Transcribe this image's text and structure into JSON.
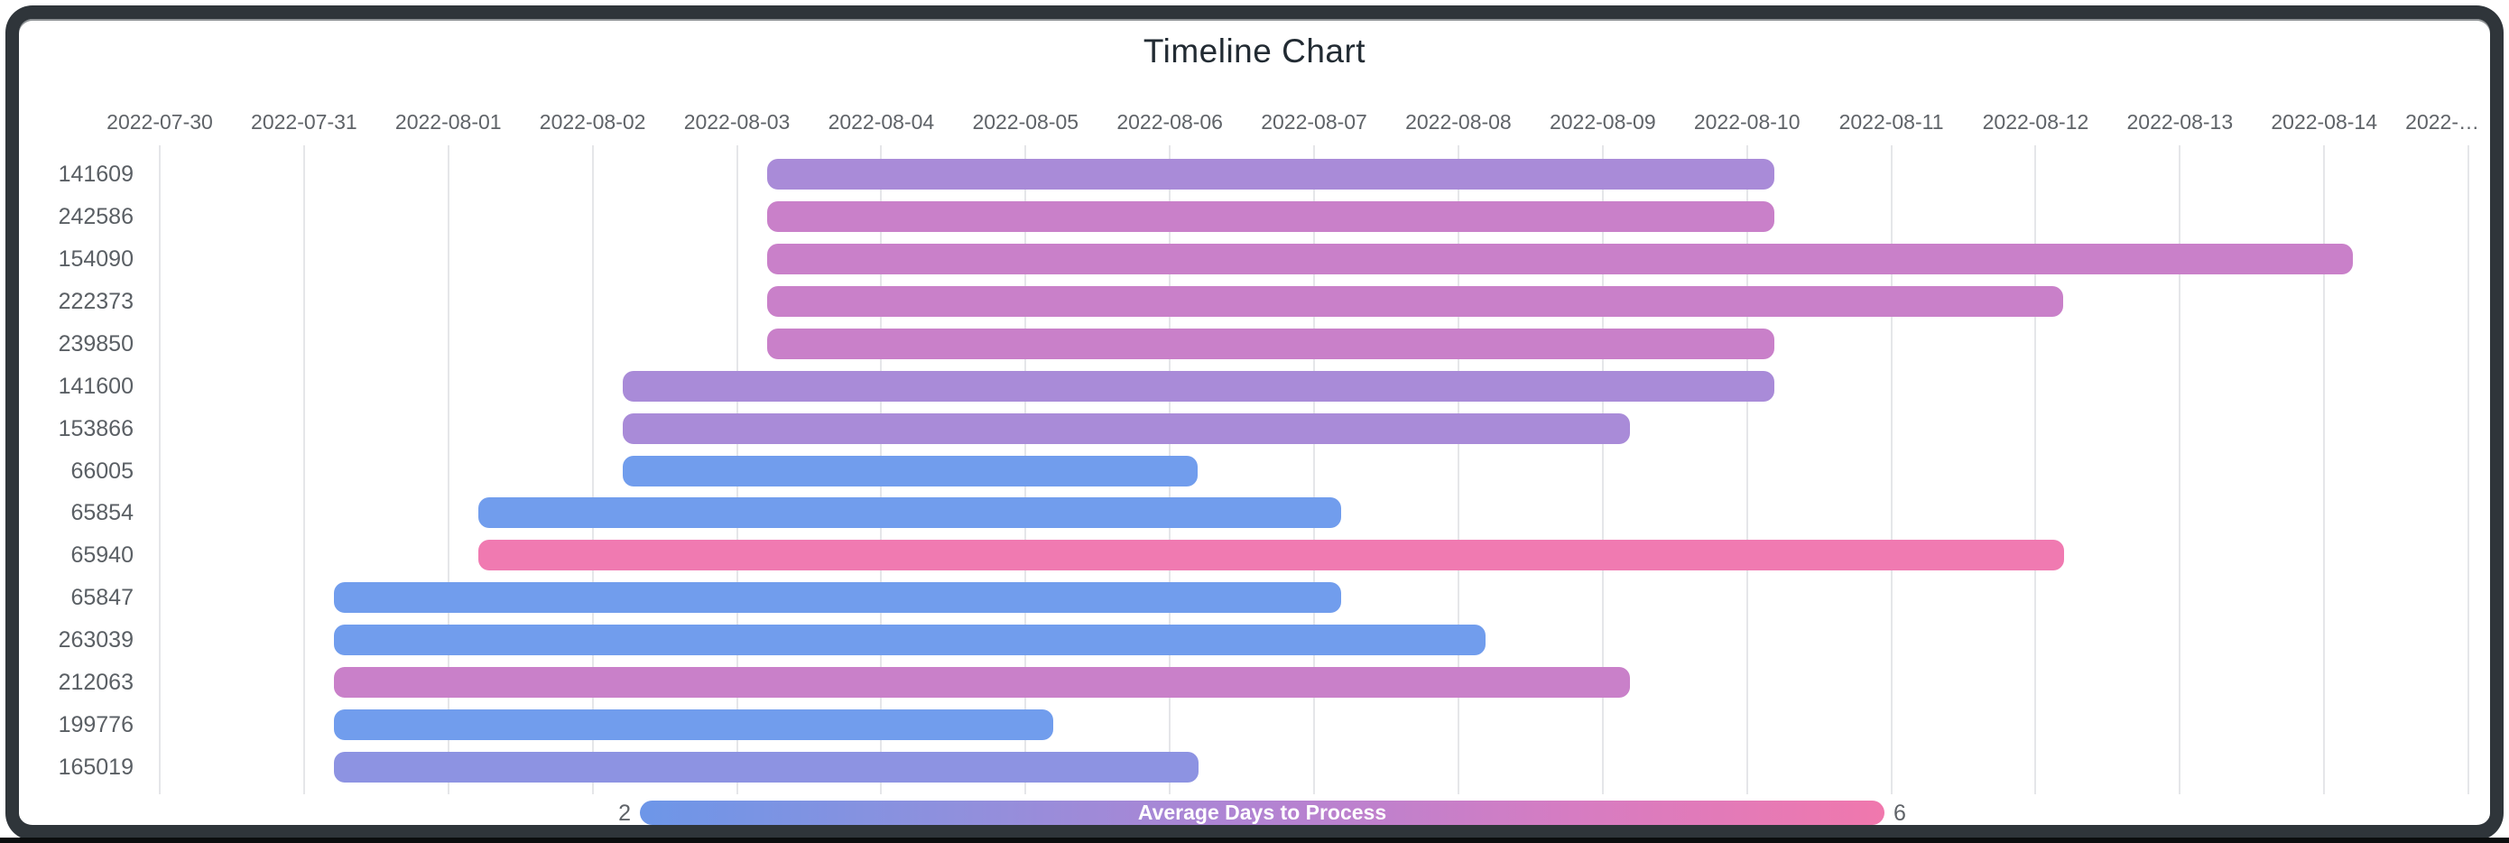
{
  "title": "Timeline Chart",
  "chart_data": {
    "type": "timeline",
    "title": "Timeline Chart",
    "x_axis": {
      "origin_date": "2022-07-30",
      "interval_days": 1,
      "ticks": [
        "2022-07-30",
        "2022-07-31",
        "2022-08-01",
        "2022-08-02",
        "2022-08-03",
        "2022-08-04",
        "2022-08-05",
        "2022-08-06",
        "2022-08-07",
        "2022-08-08",
        "2022-08-09",
        "2022-08-10",
        "2022-08-11",
        "2022-08-12",
        "2022-08-13",
        "2022-08-14",
        "2022-…"
      ]
    },
    "rows": [
      {
        "id": "141609",
        "start_date": "2022-08-03",
        "end_date": "2022-08-10",
        "start_day": 4.21,
        "end_day": 11.19,
        "color": "#a98bd8"
      },
      {
        "id": "242586",
        "start_date": "2022-08-03",
        "end_date": "2022-08-10",
        "start_day": 4.21,
        "end_day": 11.19,
        "color": "#c980c9"
      },
      {
        "id": "154090",
        "start_date": "2022-08-03",
        "end_date": "2022-08-14",
        "start_day": 4.21,
        "end_day": 15.2,
        "color": "#c980c9"
      },
      {
        "id": "222373",
        "start_date": "2022-08-03",
        "end_date": "2022-08-12",
        "start_day": 4.21,
        "end_day": 13.19,
        "color": "#c980c9"
      },
      {
        "id": "239850",
        "start_date": "2022-08-03",
        "end_date": "2022-08-10",
        "start_day": 4.21,
        "end_day": 11.19,
        "color": "#c980c9"
      },
      {
        "id": "141600",
        "start_date": "2022-08-02",
        "end_date": "2022-08-10",
        "start_day": 3.21,
        "end_day": 11.19,
        "color": "#a98bd8"
      },
      {
        "id": "153866",
        "start_date": "2022-08-02",
        "end_date": "2022-08-09",
        "start_day": 3.21,
        "end_day": 10.19,
        "color": "#a98bd8"
      },
      {
        "id": "66005",
        "start_date": "2022-08-02",
        "end_date": "2022-08-06",
        "start_day": 3.21,
        "end_day": 7.19,
        "color": "#719ded"
      },
      {
        "id": "65854",
        "start_date": "2022-08-01",
        "end_date": "2022-08-07",
        "start_day": 2.21,
        "end_day": 8.19,
        "color": "#719ded"
      },
      {
        "id": "65940",
        "start_date": "2022-08-01",
        "end_date": "2022-08-12",
        "start_day": 2.21,
        "end_day": 13.2,
        "color": "#f07ab1"
      },
      {
        "id": "65847",
        "start_date": "2022-07-31",
        "end_date": "2022-08-07",
        "start_day": 1.21,
        "end_day": 8.19,
        "color": "#719ded"
      },
      {
        "id": "263039",
        "start_date": "2022-07-31",
        "end_date": "2022-08-08",
        "start_day": 1.21,
        "end_day": 9.19,
        "color": "#719ded"
      },
      {
        "id": "212063",
        "start_date": "2022-07-31",
        "end_date": "2022-08-09",
        "start_day": 1.21,
        "end_day": 10.19,
        "color": "#c980c9"
      },
      {
        "id": "199776",
        "start_date": "2022-07-31",
        "end_date": "2022-08-05",
        "start_day": 1.21,
        "end_day": 6.19,
        "color": "#719ded"
      },
      {
        "id": "165019",
        "start_date": "2022-07-31",
        "end_date": "2022-08-06",
        "start_day": 1.21,
        "end_day": 7.2,
        "color": "#8d93e2"
      }
    ],
    "legend": {
      "min_label": "2",
      "max_label": "6",
      "title": "Average Days to Process",
      "gradient": [
        "#6d96e8",
        "#8f90dd",
        "#b283d2",
        "#d67cc2",
        "#f078ad"
      ]
    },
    "grid": true,
    "colors": {
      "axis_text": "#5f6368",
      "row_text": "#5a5f64",
      "gridline": "#e5e6e9",
      "title_text": "#222b33",
      "legend_text": "#ffffff",
      "frame": "#2f353a"
    }
  }
}
